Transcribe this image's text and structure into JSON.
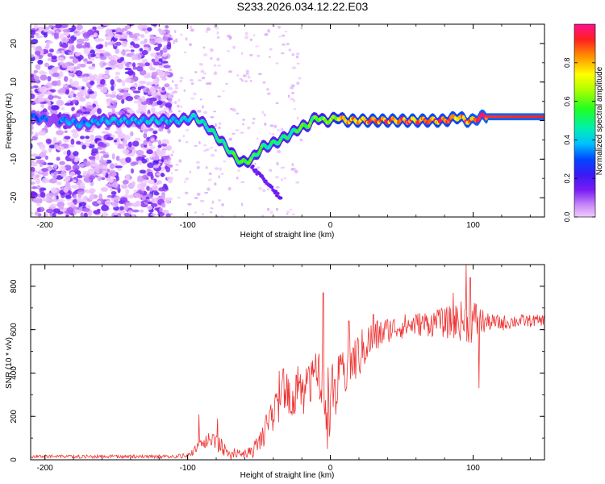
{
  "title": "S233.2026.034.12.22.E03",
  "colors": {
    "snr_line": "#ee3333",
    "axis": "#000000",
    "tile_bg": "#ffffff"
  },
  "chart_data": [
    {
      "type": "heatmap",
      "name": "spectrogram",
      "xlabel": "Height of straight line (km)",
      "ylabel": "Frequency (Hz)",
      "xlim": [
        -210,
        150
      ],
      "ylim": [
        -25,
        25
      ],
      "xticks": [
        -200,
        -100,
        0,
        100
      ],
      "xtick_labels": [
        "-200",
        "-100",
        "0",
        "100"
      ],
      "yticks": [
        -20,
        -10,
        0,
        10,
        20
      ],
      "ytick_labels": [
        "-20",
        "-10",
        "0",
        "10",
        "20"
      ],
      "colorbar": {
        "label": "Normalized spectral amplitude",
        "range": [
          0,
          1
        ],
        "ticks": [
          0.0,
          0.2,
          0.4,
          0.6,
          0.8
        ],
        "tick_labels": [
          "0.0",
          "0.2",
          "0.4",
          "0.6",
          "0.8"
        ]
      },
      "ridge": {
        "x": [
          -210,
          -195,
          -185,
          -175,
          -160,
          -140,
          -120,
          -105,
          -95,
          -85,
          -75,
          -68,
          -62,
          -55,
          -48,
          -40,
          -30,
          -22,
          -15,
          -10,
          -5,
          0,
          5,
          10,
          20,
          30,
          40,
          50,
          60,
          70,
          80,
          90,
          95,
          100,
          105,
          110,
          130,
          150
        ],
        "freq": [
          1,
          0,
          0,
          -1,
          0,
          0,
          0,
          0,
          1,
          -2,
          -6,
          -9,
          -11,
          -10,
          -7,
          -6,
          -4,
          -2,
          -1,
          1,
          0,
          0,
          1,
          0,
          0,
          0,
          0,
          0,
          0,
          0,
          0,
          1,
          0,
          0,
          1,
          1,
          1,
          1
        ]
      },
      "ridge_amplitude": {
        "x": [
          -200,
          -180,
          -105,
          -90,
          -75,
          -65,
          -55,
          -45,
          -30,
          -15,
          0,
          10,
          30,
          60,
          90,
          105,
          150
        ],
        "amp": [
          0.3,
          0.35,
          0.4,
          0.45,
          0.5,
          0.55,
          0.55,
          0.5,
          0.5,
          0.55,
          0.6,
          0.8,
          0.85,
          0.85,
          0.85,
          0.9,
          0.92
        ]
      }
    },
    {
      "type": "line",
      "name": "snr",
      "xlabel": "Height of straight line (km)",
      "ylabel": "SNR (10 * v/v)",
      "xlim": [
        -210,
        150
      ],
      "ylim": [
        0,
        900
      ],
      "xticks": [
        -200,
        -100,
        0,
        100
      ],
      "xtick_labels": [
        "-200",
        "-100",
        "0",
        "100"
      ],
      "yticks": [
        0,
        200,
        400,
        600,
        800
      ],
      "ytick_labels": [
        "0",
        "200",
        "400",
        "600",
        "800"
      ],
      "envelope": {
        "x": [
          -210,
          -190,
          -170,
          -150,
          -130,
          -110,
          -100,
          -95,
          -90,
          -85,
          -80,
          -75,
          -70,
          -65,
          -60,
          -55,
          -50,
          -45,
          -40,
          -35,
          -30,
          -25,
          -20,
          -15,
          -10,
          -5,
          0,
          5,
          10,
          15,
          20,
          25,
          30,
          40,
          50,
          60,
          70,
          80,
          90,
          100,
          110,
          120,
          130,
          140,
          150
        ],
        "y": [
          15,
          15,
          15,
          15,
          15,
          15,
          20,
          45,
          70,
          95,
          75,
          55,
          30,
          25,
          30,
          40,
          80,
          140,
          220,
          280,
          300,
          310,
          330,
          340,
          360,
          300,
          270,
          330,
          400,
          450,
          480,
          530,
          560,
          600,
          615,
          625,
          630,
          630,
          640,
          640,
          635,
          630,
          640,
          640,
          645
        ]
      },
      "noise": {
        "x": [
          -210,
          -110,
          -100,
          -80,
          -60,
          -45,
          -30,
          -15,
          0,
          10,
          20,
          40,
          60,
          80,
          100,
          110,
          150
        ],
        "amplitude": [
          8,
          8,
          12,
          40,
          20,
          70,
          110,
          140,
          170,
          120,
          110,
          60,
          55,
          70,
          110,
          40,
          25
        ]
      },
      "spikes": {
        "x": [
          -92,
          -79,
          -36,
          -33,
          -24,
          -20,
          -16,
          -14,
          -5,
          -2,
          3,
          8,
          13,
          30,
          75,
          86,
          95,
          98,
          104
        ],
        "y": [
          210,
          190,
          410,
          420,
          390,
          360,
          380,
          270,
          770,
          50,
          370,
          440,
          640,
          670,
          690,
          770,
          900,
          840,
          330
        ]
      }
    }
  ]
}
